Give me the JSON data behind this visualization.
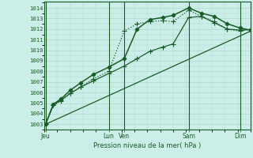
{
  "bg_color": "#cceee8",
  "grid_color": "#aad8cc",
  "line_color": "#1a5c28",
  "title": "Pression niveau de la mer( hPa )",
  "ylabel_values": [
    1003,
    1004,
    1005,
    1006,
    1007,
    1008,
    1009,
    1010,
    1011,
    1012,
    1013,
    1014
  ],
  "ylim": [
    1002.5,
    1014.6
  ],
  "xlim": [
    0,
    8.0
  ],
  "xtick_positions": [
    0.05,
    2.5,
    3.1,
    5.6,
    7.6
  ],
  "xtick_labels": [
    "Jeu",
    "Lun",
    "Ven",
    "Sam",
    "Dim"
  ],
  "vline_positions": [
    0.05,
    2.5,
    3.1,
    5.6,
    7.6
  ],
  "series": [
    {
      "x": [
        0.05,
        0.35,
        0.65,
        1.0,
        1.4,
        1.9,
        2.5,
        3.1,
        3.6,
        4.1,
        4.6,
        5.0,
        5.6,
        6.1,
        6.6,
        7.1,
        7.6,
        8.0
      ],
      "y": [
        1003.0,
        1004.8,
        1005.2,
        1005.9,
        1006.5,
        1007.3,
        1008.0,
        1011.8,
        1012.5,
        1012.7,
        1012.8,
        1012.7,
        1013.8,
        1013.2,
        1012.7,
        1012.0,
        1011.8,
        1012.0
      ],
      "marker": "+",
      "linestyle": "dotted",
      "lw": 0.9,
      "ms": 4
    },
    {
      "x": [
        0.05,
        0.35,
        0.65,
        1.0,
        1.4,
        1.9,
        2.5,
        3.1,
        3.6,
        4.1,
        4.6,
        5.0,
        5.6,
        6.1,
        6.6,
        7.1,
        7.6,
        8.0
      ],
      "y": [
        1003.0,
        1004.9,
        1005.4,
        1006.2,
        1006.9,
        1007.7,
        1008.4,
        1009.2,
        1012.0,
        1012.9,
        1013.1,
        1013.3,
        1014.0,
        1013.5,
        1013.2,
        1012.5,
        1012.1,
        1011.9
      ],
      "marker": "D",
      "linestyle": "solid",
      "lw": 1.1,
      "ms": 2.5
    },
    {
      "x": [
        0.05,
        8.0
      ],
      "y": [
        1003.0,
        1011.8
      ],
      "marker": null,
      "linestyle": "solid",
      "lw": 0.9,
      "ms": 0
    },
    {
      "x": [
        0.05,
        0.35,
        0.65,
        1.0,
        1.4,
        1.9,
        2.5,
        3.1,
        3.6,
        4.1,
        4.6,
        5.0,
        5.6,
        6.1,
        6.6,
        7.1,
        7.6,
        8.0
      ],
      "y": [
        1003.0,
        1004.8,
        1005.3,
        1005.9,
        1006.5,
        1007.1,
        1007.8,
        1008.5,
        1009.2,
        1009.9,
        1010.3,
        1010.6,
        1013.1,
        1013.2,
        1012.6,
        1012.0,
        1011.9,
        1011.95
      ],
      "marker": "+",
      "linestyle": "solid",
      "lw": 0.9,
      "ms": 4
    }
  ]
}
